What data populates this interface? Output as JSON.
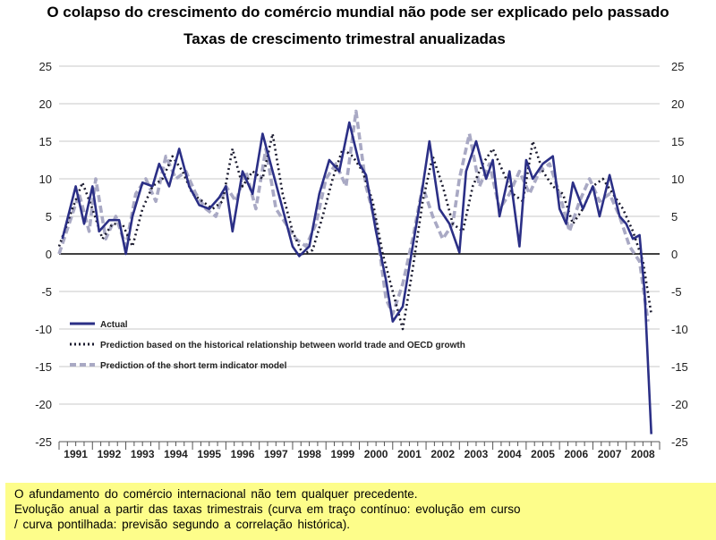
{
  "title": "O colapso do crescimento do comércio mundial não pode ser explicado pelo passado",
  "subtitle": "Taxas de crescimento trimestral anualizadas",
  "caption": {
    "line1": "O afundamento do comércio internacional não tem qualquer precedente.",
    "line2": "Evolução anual a partir das taxas trimestrais (curva em traço contínuo: evolução em curso",
    "line3": "/ curva pontilhada: previsão segundo a correlação histórica)."
  },
  "colors": {
    "actual": "#2b2f86",
    "dotted": "#1a1a2e",
    "dashed": "#a9a9c4",
    "grid": "#c8c8c8",
    "caption_bg": "#fdfd8a"
  },
  "chart_data": {
    "type": "line",
    "title": "O colapso do crescimento do comércio mundial não pode ser explicado pelo passado",
    "subtitle": "Taxas de crescimento trimestral anualizadas",
    "xlabel": "",
    "ylabel": "",
    "ylim": [
      -25,
      25
    ],
    "yticks": [
      25,
      20,
      15,
      10,
      5,
      0,
      -5,
      -10,
      -15,
      -20,
      -25
    ],
    "xlim": [
      1991,
      2009
    ],
    "year_labels": [
      "1991",
      "1992",
      "1993",
      "1994",
      "1995",
      "1996",
      "1997",
      "1998",
      "1999",
      "2000",
      "2001",
      "2002",
      "2003",
      "2004",
      "2005",
      "2006",
      "2007",
      "2008"
    ],
    "grid": true,
    "legend_position": "lower-left",
    "series": [
      {
        "name": "Actual",
        "style": "solid",
        "x": [
          1991.1,
          1991.5,
          1991.75,
          1992.0,
          1992.2,
          1992.5,
          1992.8,
          1993.0,
          1993.2,
          1993.5,
          1993.8,
          1994.0,
          1994.3,
          1994.6,
          1994.9,
          1995.2,
          1995.5,
          1995.8,
          1996.0,
          1996.2,
          1996.5,
          1996.8,
          1997.1,
          1997.4,
          1997.7,
          1998.0,
          1998.2,
          1998.5,
          1998.8,
          1999.1,
          1999.4,
          1999.7,
          2000.0,
          2000.2,
          2000.5,
          2000.8,
          2001.0,
          2001.3,
          2001.6,
          2001.9,
          2002.1,
          2002.4,
          2002.7,
          2003.0,
          2003.2,
          2003.5,
          2003.8,
          2004.0,
          2004.2,
          2004.5,
          2004.8,
          2005.0,
          2005.2,
          2005.5,
          2005.8,
          2006.0,
          2006.2,
          2006.4,
          2006.7,
          2007.0,
          2007.2,
          2007.5,
          2007.8,
          2008.0,
          2008.2,
          2008.4,
          2008.55,
          2008.75
        ],
        "values": [
          2,
          9,
          4,
          9,
          3,
          4.5,
          4.5,
          0,
          5,
          9.5,
          9,
          12,
          9,
          14,
          9,
          6.5,
          6,
          7.5,
          9,
          3,
          11,
          8,
          16,
          11,
          6,
          1,
          -0.3,
          1,
          8,
          12.5,
          11,
          17.5,
          12,
          10.5,
          3,
          -3.5,
          -9,
          -7,
          1,
          9,
          15,
          6,
          4,
          0.2,
          11,
          15,
          10,
          12.5,
          5,
          11,
          1,
          12.5,
          10,
          12,
          13,
          6,
          4,
          9.5,
          6,
          9,
          5,
          10.5,
          5,
          4,
          2,
          2.5,
          -5,
          -24
        ]
      },
      {
        "name": "Prediction based on the historical relationship between world trade and OECD growth",
        "style": "dotted",
        "x": [
          1991.0,
          1991.4,
          1991.7,
          1992.0,
          1992.3,
          1992.6,
          1992.9,
          1993.2,
          1993.5,
          1993.8,
          1994.1,
          1994.4,
          1994.7,
          1995.0,
          1995.3,
          1995.6,
          1995.9,
          1996.2,
          1996.5,
          1996.8,
          1997.1,
          1997.4,
          1997.7,
          1998.0,
          1998.3,
          1998.6,
          1998.9,
          1999.2,
          1999.5,
          1999.8,
          2000.1,
          2000.4,
          2000.7,
          2001.0,
          2001.3,
          2001.6,
          2001.9,
          2002.2,
          2002.5,
          2002.8,
          2003.1,
          2003.4,
          2003.7,
          2004.0,
          2004.3,
          2004.6,
          2004.9,
          2005.2,
          2005.5,
          2005.8,
          2006.1,
          2006.4,
          2006.7,
          2007.0,
          2007.3,
          2007.6,
          2007.9,
          2008.2,
          2008.5,
          2008.75
        ],
        "values": [
          1,
          6,
          9.5,
          6,
          2,
          4,
          4,
          1,
          6,
          9,
          10,
          13,
          11,
          8,
          7,
          6,
          7,
          14,
          9,
          11,
          10,
          16,
          8,
          3,
          0,
          0.5,
          5,
          10,
          14,
          13,
          11,
          7,
          0,
          -5,
          -10,
          -2,
          7,
          13,
          9,
          4,
          3,
          9,
          12,
          14,
          11,
          8,
          7,
          15,
          11,
          9,
          8,
          4,
          6,
          9,
          10,
          8,
          6,
          3,
          -1,
          -8
        ]
      },
      {
        "name": "Prediction of the short term indicator model",
        "style": "dashed",
        "x": [
          1991.0,
          1991.3,
          1991.6,
          1991.9,
          1992.1,
          1992.4,
          1992.7,
          1993.0,
          1993.3,
          1993.6,
          1993.9,
          1994.2,
          1994.5,
          1994.8,
          1995.1,
          1995.4,
          1995.7,
          1996.0,
          1996.3,
          1996.6,
          1996.9,
          1997.2,
          1997.5,
          1997.8,
          1998.1,
          1998.4,
          1998.7,
          1999.0,
          1999.3,
          1999.6,
          1999.9,
          2000.2,
          2000.5,
          2000.8,
          2001.0,
          2001.3,
          2001.6,
          2001.9,
          2002.2,
          2002.5,
          2002.8,
          2003.0,
          2003.3,
          2003.6,
          2003.9,
          2004.2,
          2004.5,
          2004.8,
          2005.1,
          2005.4,
          2005.7,
          2006.0,
          2006.3,
          2006.6,
          2006.9,
          2007.2,
          2007.5,
          2007.8,
          2008.1,
          2008.4,
          2008.65
        ],
        "values": [
          0,
          4,
          8,
          3,
          10,
          2,
          5,
          1,
          8,
          10,
          7,
          13,
          10,
          11,
          8,
          6,
          5,
          9,
          7,
          11,
          6,
          14,
          6,
          4,
          2,
          1,
          4,
          10,
          12,
          9,
          19,
          9,
          4,
          -6,
          -8,
          -4,
          2,
          9,
          5,
          2,
          4,
          10,
          16,
          9,
          12,
          6,
          8,
          11,
          8,
          11,
          12,
          8,
          3,
          7,
          10,
          7,
          8,
          5,
          1,
          -1,
          -9
        ]
      }
    ]
  }
}
